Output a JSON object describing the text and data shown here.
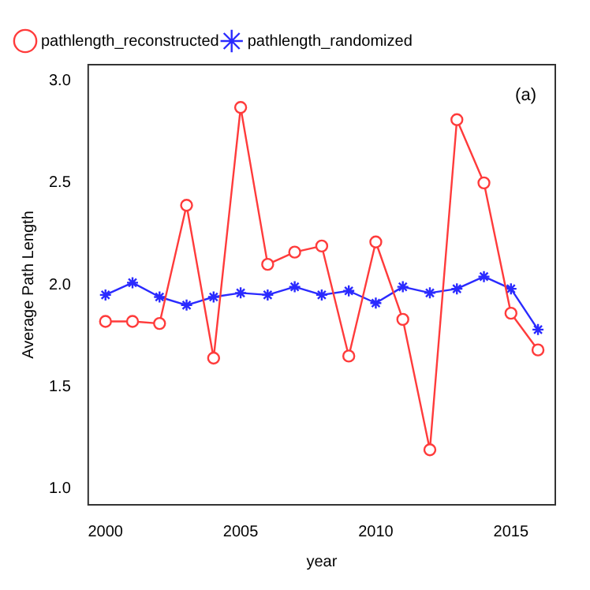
{
  "chart_data": {
    "type": "line",
    "xlabel": "year",
    "ylabel": "Average Path Length",
    "annotations": [
      "(a)"
    ],
    "x": [
      2000,
      2001,
      2002,
      2003,
      2004,
      2005,
      2006,
      2007,
      2008,
      2009,
      2010,
      2011,
      2012,
      2013,
      2014,
      2015,
      2016
    ],
    "series": [
      {
        "name": "pathlength_reconstructed",
        "color": "#ff3b3b",
        "marker": "circle",
        "values": [
          1.82,
          1.82,
          1.81,
          2.39,
          1.64,
          2.87,
          2.1,
          2.16,
          2.19,
          1.65,
          2.21,
          1.83,
          1.19,
          2.81,
          2.5,
          1.86,
          1.68
        ]
      },
      {
        "name": "pathlength_randomized",
        "color": "#2a2aff",
        "marker": "cross",
        "values": [
          1.95,
          2.01,
          1.94,
          1.9,
          1.94,
          1.96,
          1.95,
          1.99,
          1.95,
          1.97,
          1.91,
          1.99,
          1.96,
          1.98,
          2.04,
          1.98,
          1.78
        ]
      }
    ],
    "xlim": [
      1999.36,
      2016.64
    ],
    "xticks": [
      2000,
      2005,
      2010,
      2015
    ],
    "ylim": [
      0.92,
      3.08
    ],
    "yticks": [
      {
        "value": 1,
        "label": "1.0"
      },
      1.5,
      {
        "value": 2,
        "label": "2.0"
      },
      2.5,
      {
        "value": 3,
        "label": "3.0"
      }
    ],
    "grid": false,
    "legend": "top left",
    "line_style": "solid"
  }
}
